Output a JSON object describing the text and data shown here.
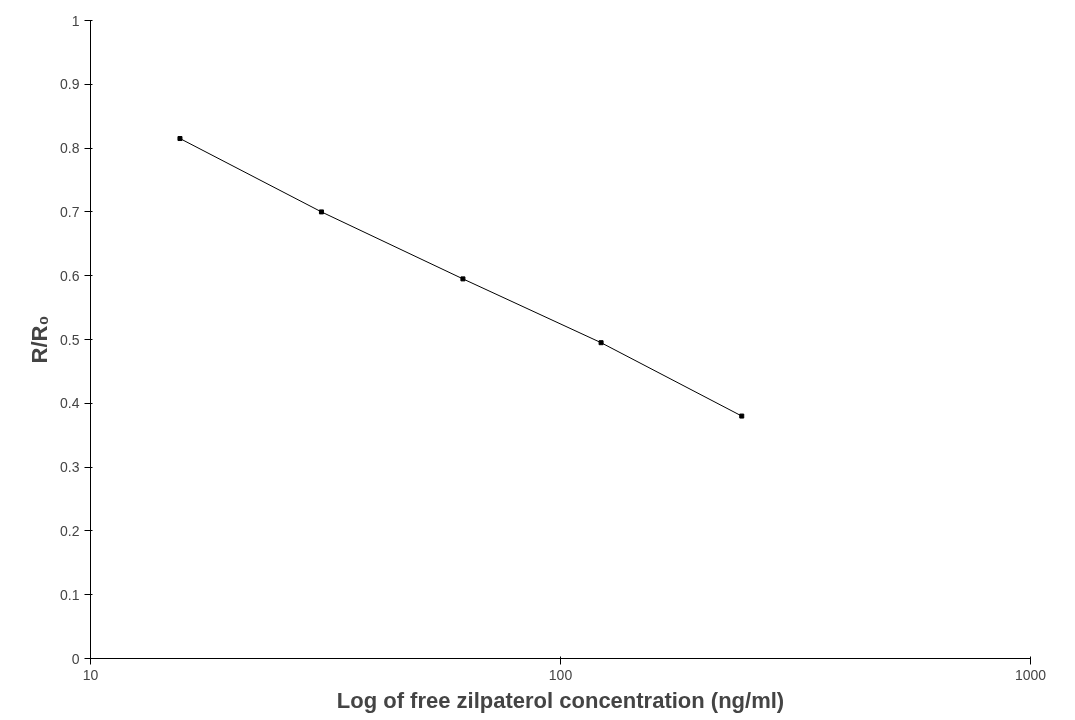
{
  "chart_data": {
    "type": "line",
    "xlabel": "Log of free zilpaterol concentration (ng/ml)",
    "ylabel": "R/R₀",
    "x": [
      15.5,
      31,
      62,
      122,
      243
    ],
    "series": [
      {
        "color": "#000000",
        "values": [
          0.815,
          0.7,
          0.595,
          0.495,
          0.38
        ]
      }
    ],
    "log": "x",
    "xlim": [
      10,
      1000
    ],
    "xticks": [
      10,
      100,
      1000
    ],
    "ylim": [
      0,
      1
    ],
    "yticks": [
      0,
      0.1,
      0.2,
      0.3,
      0.4,
      0.5,
      0.6,
      0.7,
      0.8,
      0.9,
      1
    ],
    "grid": false,
    "marker": "square",
    "line_style": "solid"
  }
}
